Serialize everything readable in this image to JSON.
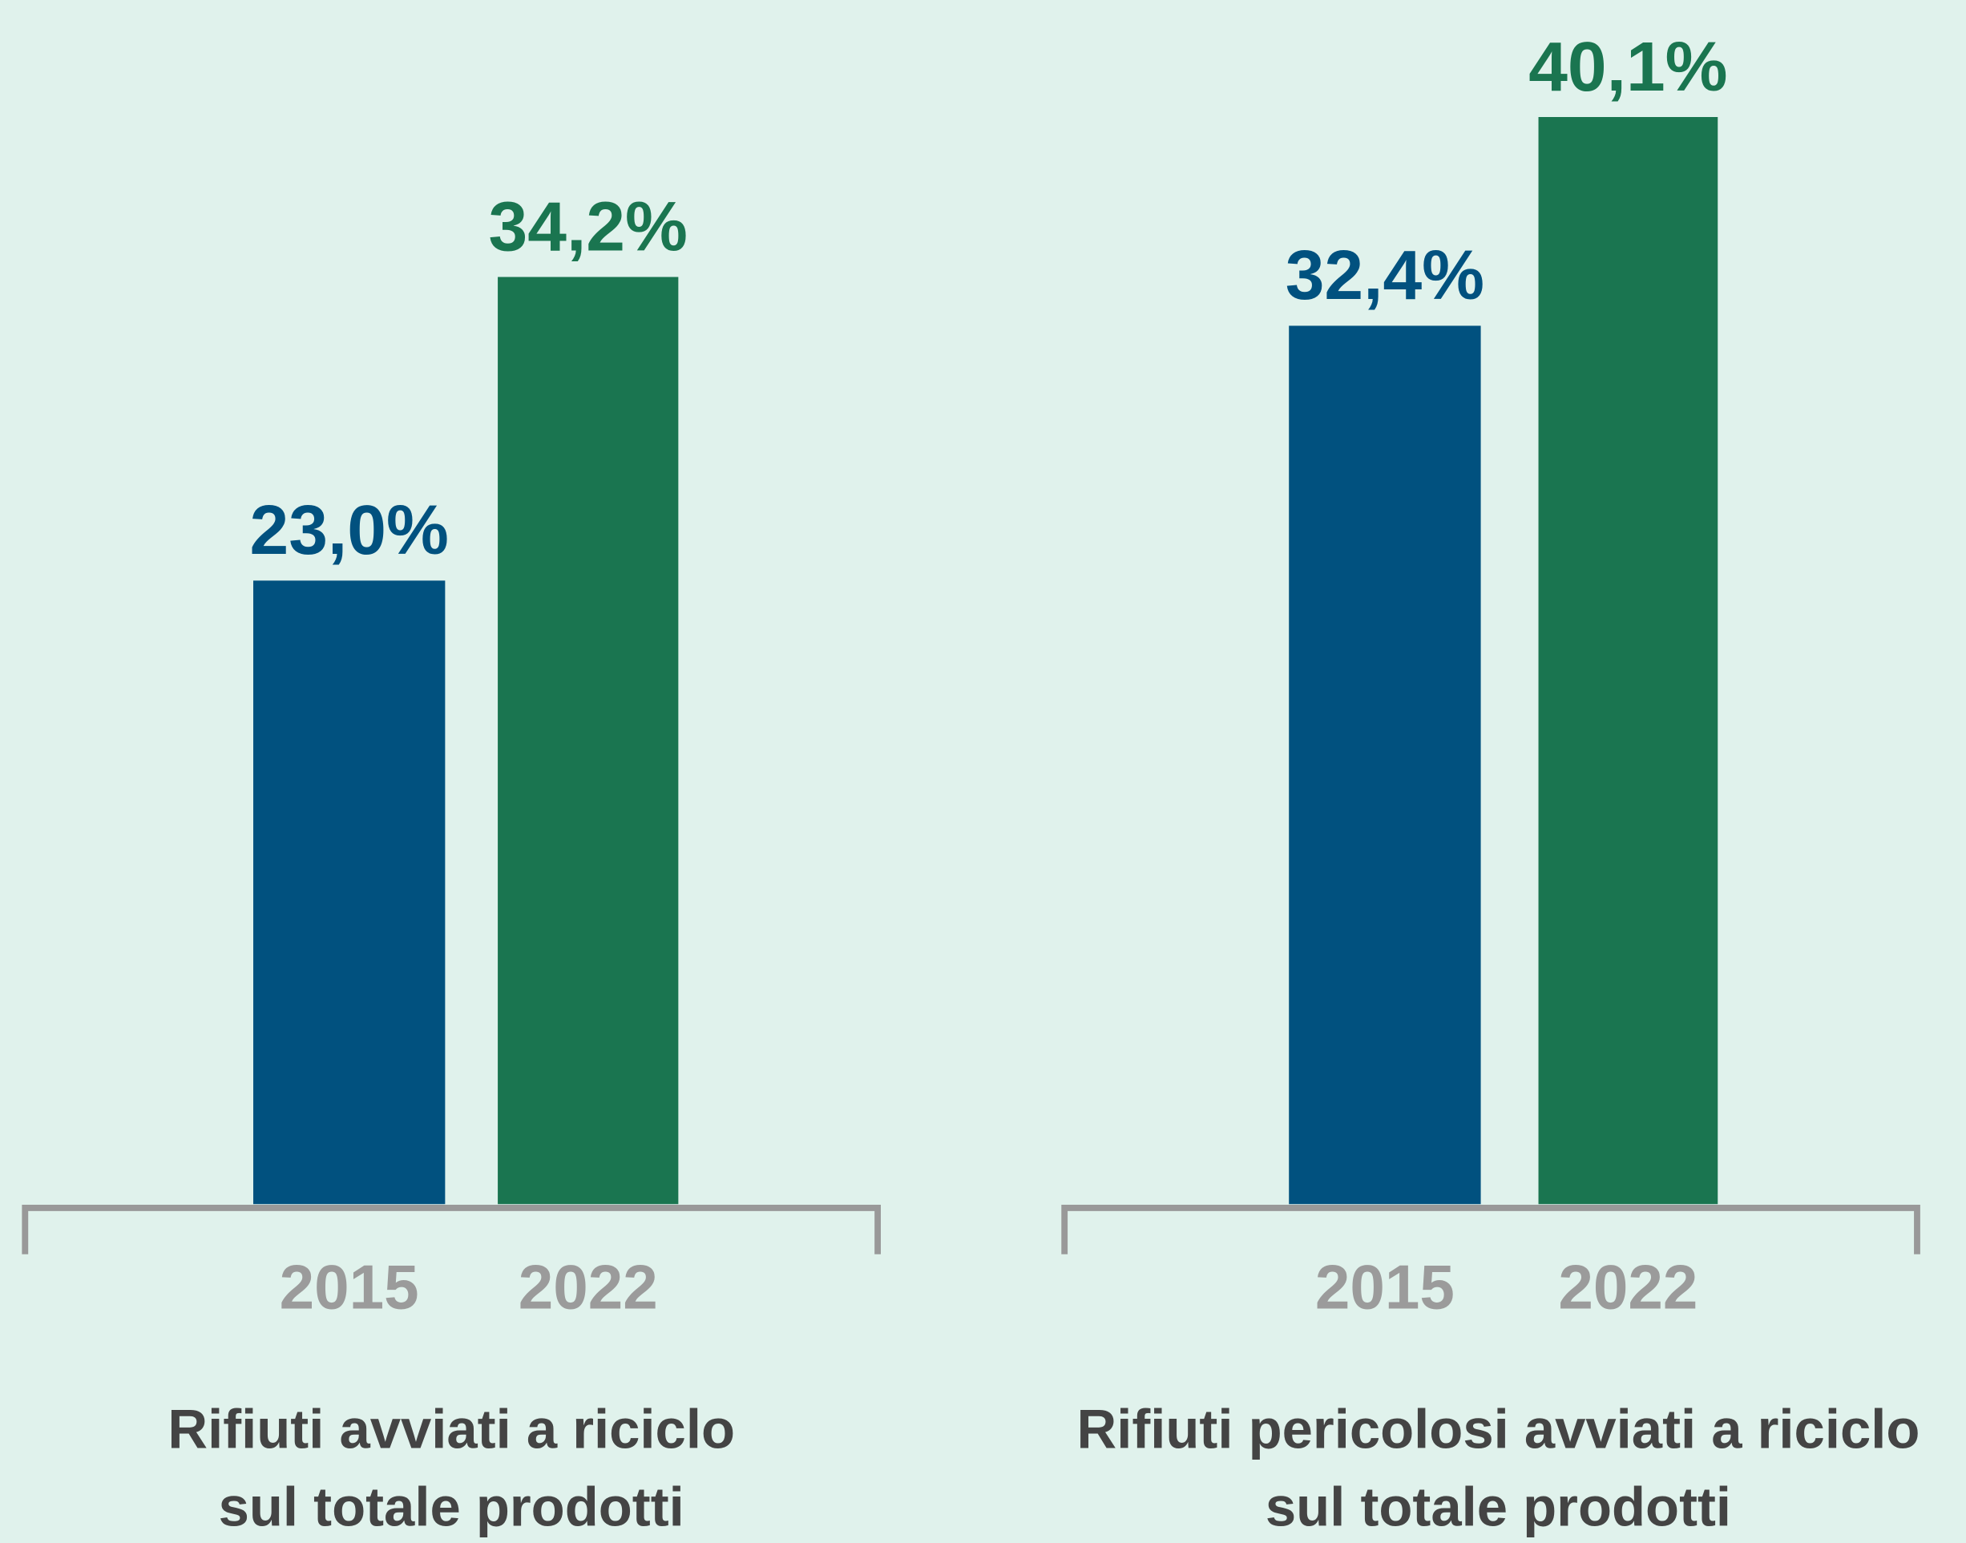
{
  "chart_data": [
    {
      "type": "bar",
      "title": [
        "Rifiuti avviati a riciclo",
        "sul totale prodotti"
      ],
      "categories": [
        "2015",
        "2022"
      ],
      "values": [
        23.0,
        34.2
      ],
      "value_labels": [
        "23,0%",
        "34,2%"
      ],
      "colors": [
        "#01517f",
        "#1a7550"
      ],
      "ylim": [
        0,
        42
      ]
    },
    {
      "type": "bar",
      "title": [
        "Rifiuti pericolosi avviati a riciclo",
        "sul totale prodotti"
      ],
      "categories": [
        "2015",
        "2022"
      ],
      "values": [
        32.4,
        40.1
      ],
      "value_labels": [
        "32,4%",
        "40,1%"
      ],
      "colors": [
        "#01517f",
        "#1a7550"
      ],
      "ylim": [
        0,
        42
      ]
    }
  ]
}
